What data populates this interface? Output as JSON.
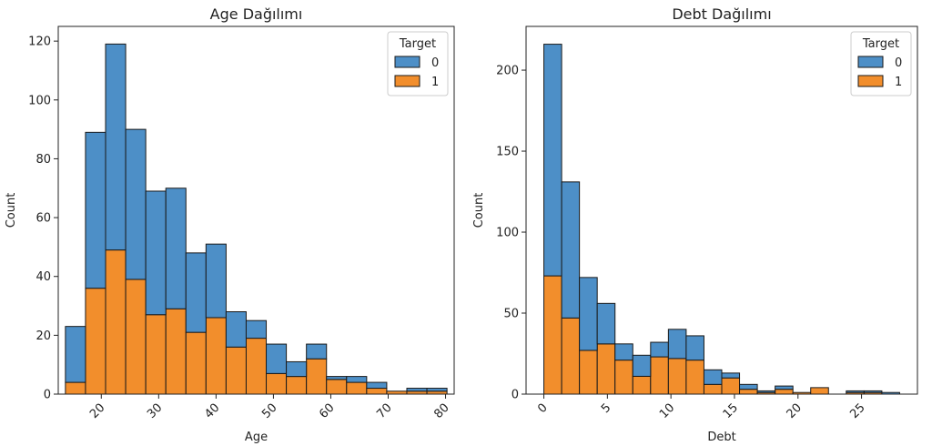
{
  "chart_data": [
    {
      "type": "bar",
      "stacked": true,
      "title": "Age Dağılımı",
      "xlabel": "Age",
      "ylabel": "Count",
      "xlim": [
        12.5,
        81.5
      ],
      "ylim": [
        0,
        125
      ],
      "xticks": [
        20,
        30,
        40,
        50,
        60,
        70,
        80
      ],
      "yticks": [
        0,
        20,
        40,
        60,
        80,
        100,
        120
      ],
      "bin_edges": [
        13.75,
        17.25,
        20.75,
        24.25,
        27.75,
        31.25,
        34.75,
        38.25,
        41.75,
        45.25,
        48.75,
        52.25,
        55.75,
        59.25,
        62.75,
        66.25,
        69.75,
        73.25,
        76.75,
        80.25
      ],
      "legend": {
        "title": "Target",
        "position": "top-right",
        "entries": [
          "0",
          "1"
        ]
      },
      "series": [
        {
          "name": "1",
          "color": "#f28e2c",
          "values": [
            4,
            36,
            49,
            39,
            27,
            29,
            21,
            26,
            16,
            19,
            7,
            6,
            12,
            5,
            4,
            2,
            1,
            1,
            1
          ]
        },
        {
          "name": "0",
          "color": "#4d8fc7",
          "values": [
            19,
            53,
            70,
            51,
            42,
            41,
            27,
            25,
            12,
            6,
            10,
            5,
            5,
            1,
            2,
            2,
            0,
            1,
            1
          ]
        }
      ]
    },
    {
      "type": "bar",
      "stacked": true,
      "title": "Debt Dağılımı",
      "xlabel": "Debt",
      "ylabel": "Count",
      "xlim": [
        -1.4,
        29.4
      ],
      "ylim": [
        0,
        227
      ],
      "xticks": [
        0,
        5,
        10,
        15,
        20,
        25
      ],
      "yticks": [
        0,
        50,
        100,
        150,
        200
      ],
      "bin_edges": [
        0,
        1.4,
        2.8,
        4.2,
        5.6,
        7.0,
        8.4,
        9.8,
        11.2,
        12.6,
        14.0,
        15.4,
        16.8,
        18.2,
        19.6,
        21.0,
        22.4,
        23.8,
        25.2,
        26.6,
        28.0
      ],
      "legend": {
        "title": "Target",
        "position": "top-right",
        "entries": [
          "0",
          "1"
        ]
      },
      "series": [
        {
          "name": "1",
          "color": "#f28e2c",
          "values": [
            73,
            47,
            27,
            31,
            21,
            11,
            23,
            22,
            21,
            6,
            10,
            3,
            1,
            3,
            1,
            4,
            0,
            1,
            1,
            0
          ]
        },
        {
          "name": "0",
          "color": "#4d8fc7",
          "values": [
            143,
            84,
            45,
            25,
            10,
            13,
            9,
            18,
            15,
            9,
            3,
            3,
            1,
            2,
            0,
            0,
            0,
            1,
            1,
            1
          ]
        }
      ]
    }
  ]
}
